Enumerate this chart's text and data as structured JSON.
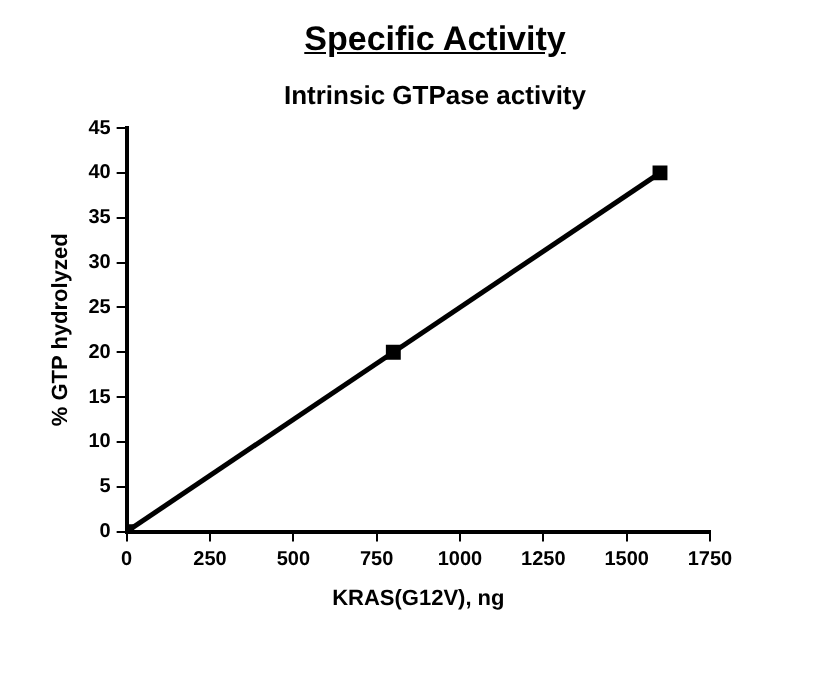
{
  "chart_data": {
    "type": "line",
    "title": "Specific Activity",
    "subtitle": "Intrinsic GTPase activity",
    "xlabel": "KRAS(G12V), ng",
    "ylabel": "% GTP hydrolyzed",
    "x": [
      0,
      800,
      1600
    ],
    "series": [
      {
        "color": "#000000",
        "values": [
          0,
          20,
          40
        ]
      }
    ],
    "xlim": [
      0,
      1750
    ],
    "xticks": [
      0,
      250,
      500,
      750,
      1000,
      1250,
      1500,
      1750
    ],
    "ylim": [
      0,
      45
    ],
    "yticks": [
      0,
      5,
      10,
      15,
      20,
      25,
      30,
      35,
      40,
      45
    ],
    "grid": false,
    "legend": false,
    "marker": "square",
    "line_style": "solid"
  }
}
